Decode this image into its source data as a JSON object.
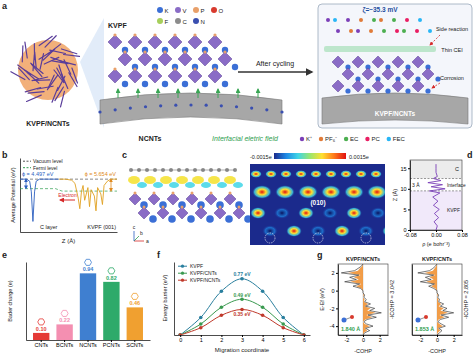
{
  "panel_labels": [
    "a",
    "b",
    "c",
    "d",
    "e",
    "f",
    "g"
  ],
  "panel_a": {
    "cluster_label": "KVPF/NCNTs",
    "crystal_label": "KVPF",
    "tube_label": "NCNTs",
    "arrow_label": "After cycling",
    "elements": [
      {
        "symbol": "K",
        "color": "#3b6fd6"
      },
      {
        "symbol": "V",
        "color": "#8a6cc6"
      },
      {
        "symbol": "P",
        "color": "#e8a06a"
      },
      {
        "symbol": "O",
        "color": "#d83a2e"
      },
      {
        "symbol": "F",
        "color": "#a6cf5b"
      },
      {
        "symbol": "C",
        "color": "#8c8c8c"
      },
      {
        "symbol": "N",
        "color": "#3a4fb0"
      }
    ],
    "zeta": "ζ=−35.3 mV",
    "side_reaction": "Side reaction",
    "cei": "Thin CEI",
    "corrosion": "Corrosion",
    "interface_label": "KVPF/NCNTs",
    "field_label": "Interfacial eletric field",
    "species": [
      {
        "label": "K⁺",
        "color": "#7b3fb8"
      },
      {
        "label": "PF₆⁻",
        "color": "#e07b39"
      },
      {
        "label": "EC",
        "color": "#4caf50"
      },
      {
        "label": "PC",
        "color": "#e91e63"
      },
      {
        "label": "FEC",
        "color": "#29b6f6"
      }
    ]
  },
  "panel_c": {
    "colorbar_min": "-0.0015e",
    "colorbar_max": "0.0015e",
    "plane": "(010)",
    "axes": [
      "a",
      "b",
      "c"
    ]
  },
  "chart_data": [
    {
      "type": "line",
      "xlabel": "Z (Å)",
      "ylabel": "Average Potential (eV)",
      "xlim": [
        0,
        30
      ],
      "ylim": [
        -25,
        10
      ],
      "tick_labels": false,
      "legend": "upper-left",
      "series": [
        {
          "name": "Vacuum level",
          "color": "#555555",
          "line_style": "dashed",
          "x": [
            0,
            30
          ],
          "values": [
            0,
            0
          ]
        },
        {
          "name": "Fermi level",
          "color": "#2e9e4f",
          "line_style": "dashed",
          "x": [
            0,
            11,
            13,
            30
          ],
          "values": [
            -4.497,
            -4.497,
            -5.654,
            -5.654
          ]
        },
        {
          "color": "#2b5fc0",
          "line_style": "solid",
          "x": [
            0,
            2,
            3,
            3.5,
            4,
            4.5,
            5,
            6,
            8,
            10,
            12
          ],
          "values": [
            0,
            0,
            -1,
            -6,
            -20,
            -6,
            -1,
            0,
            0,
            0,
            0
          ]
        },
        {
          "color": "#e0a020",
          "line_style": "solid",
          "x": [
            12,
            14,
            16,
            17,
            18,
            18.5,
            19,
            19.5,
            20,
            21,
            21.5,
            22,
            23,
            23.5,
            24,
            25,
            25.5,
            26,
            27,
            28,
            30
          ],
          "values": [
            0,
            0,
            -0.5,
            -2,
            -9,
            -14,
            -6,
            -3,
            -10,
            -4,
            -13,
            -5,
            -8,
            -15,
            -4,
            -7,
            -12,
            -3,
            -1,
            0,
            0
          ]
        }
      ],
      "annotations": [
        {
          "text": "ϕ = 4.497 eV",
          "color": "#2b5fc0"
        },
        {
          "text": "ϕ = 5.654 eV",
          "color": "#e08a20"
        },
        {
          "text": "Electron",
          "color": "#d62828"
        },
        {
          "text": "C layer",
          "color": "#222222"
        },
        {
          "text": "KVPF (001)",
          "color": "#222222"
        }
      ]
    },
    {
      "type": "line",
      "xlabel": "ρ (e bohr⁻³)",
      "ylabel": "Z (Å)",
      "xlim": [
        -0.08,
        0.08
      ],
      "xticks": [
        -0.08,
        {
          "value": 0,
          "label": "0.00"
        },
        0.08
      ],
      "ylim": [
        0,
        17
      ],
      "yticks": [
        0,
        5,
        10,
        15
      ],
      "color": "#7b3fb8",
      "x": [
        0,
        0.004,
        -0.006,
        0.008,
        -0.005,
        0.01,
        -0.008,
        0.006,
        -0.01,
        0.012,
        -0.02,
        0.028,
        -0.015,
        0.02,
        -0.025,
        0.015,
        -0.008,
        0.004,
        0,
        0,
        0
      ],
      "values": [
        0,
        1,
        2,
        3,
        4,
        5,
        6,
        7,
        8,
        9,
        9.5,
        10,
        10.5,
        11,
        11.5,
        12,
        12.5,
        13,
        14,
        15,
        16
      ],
      "interface_z": [
        9.5,
        12.5
      ],
      "annotations": [
        {
          "text": "C"
        },
        {
          "text": "Interface"
        },
        {
          "text": "KVPF"
        },
        {
          "text": "3 Å"
        }
      ]
    },
    {
      "type": "bar",
      "ylabel": "Bader charge (e)",
      "categories": [
        "CNTs",
        "BCNTs",
        "NCNTs",
        "PCNTs",
        "SCNTs"
      ],
      "values": [
        0.1,
        0.22,
        0.94,
        0.82,
        0.46
      ],
      "value_labels": [
        "0.10",
        "0.22",
        "0.94",
        "0.82",
        "0.46"
      ],
      "data_labels": true,
      "colors": [
        "#e53935",
        "#f48fb1",
        "#3f7fd0",
        "#2eaa6a",
        "#f0a030"
      ],
      "ylim": [
        0,
        1.1
      ],
      "tick_labels": "x"
    },
    {
      "type": "line",
      "xlabel": "Migration coordinate",
      "ylabel": "Energy barrier (eV)",
      "x": [
        0,
        1,
        2,
        3,
        4,
        5,
        6
      ],
      "xticks": [
        0,
        1,
        2,
        3,
        4,
        5,
        6
      ],
      "xlim": [
        -0.3,
        6.3
      ],
      "ylim": [
        0,
        1
      ],
      "tick_labels": "x",
      "legend": "upper-left",
      "marker": "circle",
      "series": [
        {
          "name": "KVPF",
          "color": "#2a7f9e",
          "values": [
            0,
            0.24,
            0.6,
            0.77,
            0.6,
            0.24,
            0
          ]
        },
        {
          "name": "KVPF/CNTs",
          "color": "#3a9a50",
          "values": [
            0,
            0.15,
            0.38,
            0.49,
            0.38,
            0.15,
            0
          ]
        },
        {
          "name": "KVPF/NCNTs",
          "color": "#c0392b",
          "values": [
            0,
            0.1,
            0.27,
            0.35,
            0.27,
            0.1,
            0
          ]
        }
      ],
      "annotations": [
        {
          "text": "0.77 eV",
          "color": "#2a7f9e"
        },
        {
          "text": "0.49 eV",
          "color": "#3a9a50"
        },
        {
          "text": "0.35 eV",
          "color": "#c0392b"
        }
      ]
    },
    {
      "type": "line",
      "title": "KVPF/NCNTs",
      "xlabel": "-COHP",
      "ylabel": "E-Ef (eV)",
      "xlim": [
        -3,
        3
      ],
      "xticks": [
        -2,
        0,
        2
      ],
      "ylim": [
        -5,
        3
      ],
      "yticks": [
        -4,
        -2,
        0,
        2
      ],
      "energies": [
        -5,
        -4.75,
        -4.5,
        -4.25,
        -4,
        -3.75,
        -3.5,
        -3.25,
        -3,
        -2.75,
        -2.5,
        -2.25,
        -2,
        -1.75,
        -1.5,
        -1.25,
        -1,
        -0.75,
        -0.5,
        -0.25,
        0,
        0.25,
        0.5,
        0.75,
        1,
        1.25,
        1.5,
        1.75,
        2,
        2.25,
        2.5,
        2.75,
        3
      ],
      "series": [
        {
          "type": "area",
          "color": "#f08c28",
          "values": [
            0,
            0.1,
            0.5,
            0.2,
            0.8,
            0.2,
            0,
            0.3,
            1.1,
            0.4,
            1.5,
            0.5,
            0.9,
            0.2,
            0.6,
            0.1,
            0.2,
            0,
            0.1,
            0,
            0,
            -0.2,
            -0.8,
            -0.2,
            -1.5,
            -0.5,
            -1.1,
            -0.3,
            -1.8,
            -0.6,
            -0.4,
            -0.1,
            0
          ]
        },
        {
          "type": "line",
          "color": "#222222",
          "values": [
            0,
            0.2,
            0.8,
            0.3,
            1.2,
            0.4,
            0.1,
            0.5,
            1.6,
            0.6,
            2.2,
            0.8,
            1.4,
            0.3,
            0.9,
            0.2,
            0.4,
            0.1,
            0.2,
            0,
            0,
            -0.3,
            -1.2,
            -0.4,
            -2.2,
            -0.8,
            -1.6,
            -0.5,
            -2.6,
            -1,
            -0.6,
            -0.2,
            0
          ]
        }
      ],
      "annotations": [
        {
          "text": "-ICOHP = 3.042",
          "color": "#222222"
        },
        {
          "text": "1.840 Å",
          "color": "#2e9e4f"
        }
      ]
    },
    {
      "type": "line",
      "title": "KVPF/CNTs",
      "xlabel": "-COHP",
      "xlim": [
        -3,
        3
      ],
      "xticks": [
        -2,
        0,
        2
      ],
      "ylim": [
        -5,
        3
      ],
      "tick_labels": "x",
      "energies": [
        -5,
        -4.75,
        -4.5,
        -4.25,
        -4,
        -3.75,
        -3.5,
        -3.25,
        -3,
        -2.75,
        -2.5,
        -2.25,
        -2,
        -1.75,
        -1.5,
        -1.25,
        -1,
        -0.75,
        -0.5,
        -0.25,
        0,
        0.25,
        0.5,
        0.75,
        1,
        1.25,
        1.5,
        1.75,
        2,
        2.25,
        2.5,
        2.75,
        3
      ],
      "series": [
        {
          "type": "area",
          "color": "#f08c28",
          "values": [
            0,
            0.1,
            0.4,
            0.1,
            0.7,
            0.3,
            0,
            0.2,
            0.9,
            0.3,
            1.3,
            0.4,
            0.8,
            0.2,
            0.5,
            0.1,
            0.2,
            0,
            0.1,
            0,
            0,
            -0.2,
            -0.7,
            -0.2,
            -1.3,
            -0.4,
            -0.9,
            -0.2,
            -1.5,
            -0.5,
            -0.3,
            -0.1,
            0
          ]
        },
        {
          "type": "line",
          "color": "#222222",
          "values": [
            0,
            0.3,
            0.6,
            0.2,
            1.0,
            0.5,
            0.1,
            0.4,
            1.4,
            0.5,
            2.0,
            0.7,
            1.2,
            0.4,
            0.8,
            0.2,
            0.3,
            0.1,
            0.2,
            0,
            0,
            -0.4,
            -1.0,
            -0.3,
            -2.0,
            -0.7,
            -1.4,
            -0.4,
            -2.3,
            -0.9,
            -0.5,
            -0.2,
            0
          ]
        }
      ],
      "annotations": [
        {
          "text": "-ICOHP = 2.805",
          "color": "#222222"
        },
        {
          "text": "1.853 Å",
          "color": "#2e9e4f"
        }
      ]
    }
  ]
}
